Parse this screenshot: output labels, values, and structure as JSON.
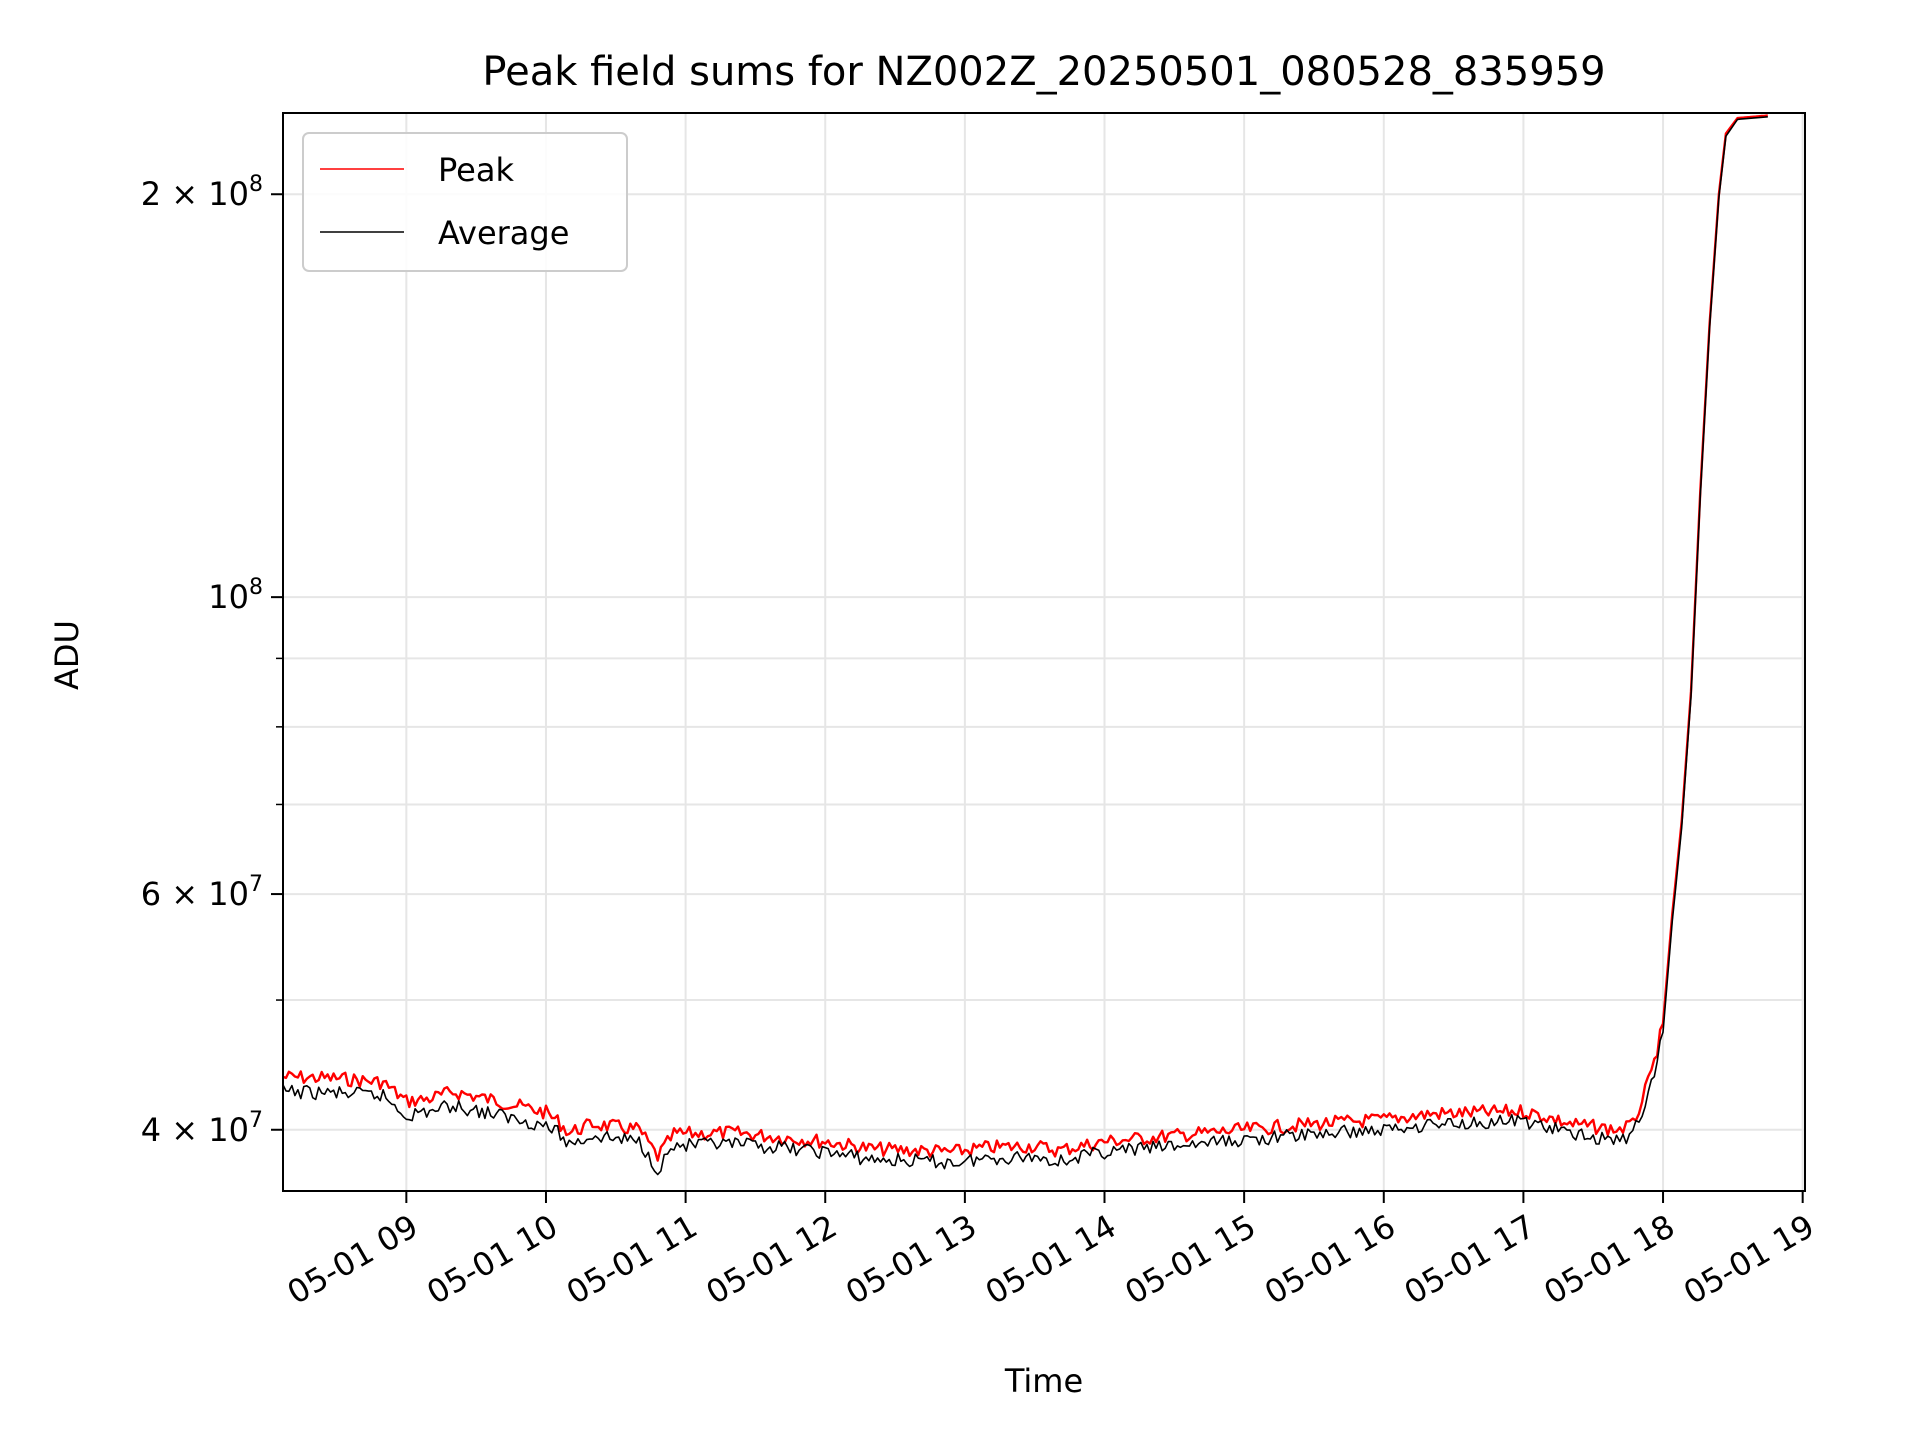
{
  "chart_data": {
    "type": "line",
    "title": "Peak field sums for NZ002Z_20250501_080528_835959",
    "xlabel": "Time",
    "ylabel": "ADU",
    "yscale": "log",
    "xlim": [
      "2025-05-01 08:07",
      "2025-05-01 19:01"
    ],
    "ylim": [
      36000000,
      230000000
    ],
    "grid": true,
    "legend_position": "top-left",
    "x_ticks": [
      {
        "time": "2025-05-01 09:00",
        "label": "05-01 09"
      },
      {
        "time": "2025-05-01 10:00",
        "label": "05-01 10"
      },
      {
        "time": "2025-05-01 11:00",
        "label": "05-01 11"
      },
      {
        "time": "2025-05-01 12:00",
        "label": "05-01 12"
      },
      {
        "time": "2025-05-01 13:00",
        "label": "05-01 13"
      },
      {
        "time": "2025-05-01 14:00",
        "label": "05-01 14"
      },
      {
        "time": "2025-05-01 15:00",
        "label": "05-01 15"
      },
      {
        "time": "2025-05-01 16:00",
        "label": "05-01 16"
      },
      {
        "time": "2025-05-01 17:00",
        "label": "05-01 17"
      },
      {
        "time": "2025-05-01 18:00",
        "label": "05-01 18"
      },
      {
        "time": "2025-05-01 19:00",
        "label": "05-01 19"
      }
    ],
    "y_ticks": [
      {
        "value": 40000000,
        "mantissa": "4",
        "exponent": "7",
        "label": "4 × 10^7"
      },
      {
        "value": 60000000,
        "mantissa": "6",
        "exponent": "7",
        "label": "6 × 10^7"
      },
      {
        "value": 100000000,
        "mantissa": "",
        "exponent": "8",
        "label": "10^8"
      },
      {
        "value": 200000000,
        "mantissa": "2",
        "exponent": "8",
        "label": "2 × 10^8"
      }
    ],
    "y_minor_ticks": [
      50000000,
      70000000,
      80000000,
      90000000
    ],
    "series": [
      {
        "name": "Peak",
        "color": "#ff0000",
        "points": [
          [
            "2025-05-01 08:07",
            43800000
          ],
          [
            "2025-05-01 08:30",
            43700000
          ],
          [
            "2025-05-01 08:50",
            43400000
          ],
          [
            "2025-05-01 09:00",
            42000000
          ],
          [
            "2025-05-01 09:10",
            42200000
          ],
          [
            "2025-05-01 09:20",
            42700000
          ],
          [
            "2025-05-01 09:40",
            42000000
          ],
          [
            "2025-05-01 10:00",
            41200000
          ],
          [
            "2025-05-01 10:05",
            40600000
          ],
          [
            "2025-05-01 10:10",
            39800000
          ],
          [
            "2025-05-01 10:20",
            40400000
          ],
          [
            "2025-05-01 10:40",
            40000000
          ],
          [
            "2025-05-01 10:48",
            38200000
          ],
          [
            "2025-05-01 10:55",
            39700000
          ],
          [
            "2025-05-01 11:20",
            39800000
          ],
          [
            "2025-05-01 11:40",
            39500000
          ],
          [
            "2025-05-01 12:00",
            39200000
          ],
          [
            "2025-05-01 12:20",
            38700000
          ],
          [
            "2025-05-01 12:40",
            38600000
          ],
          [
            "2025-05-01 12:55",
            38500000
          ],
          [
            "2025-05-01 13:10",
            38800000
          ],
          [
            "2025-05-01 13:30",
            38900000
          ],
          [
            "2025-05-01 13:40",
            38600000
          ],
          [
            "2025-05-01 14:00",
            39200000
          ],
          [
            "2025-05-01 14:30",
            39600000
          ],
          [
            "2025-05-01 15:00",
            40000000
          ],
          [
            "2025-05-01 15:30",
            40400000
          ],
          [
            "2025-05-01 16:00",
            40700000
          ],
          [
            "2025-05-01 16:20",
            41100000
          ],
          [
            "2025-05-01 16:40",
            41200000
          ],
          [
            "2025-05-01 17:00",
            41300000
          ],
          [
            "2025-05-01 17:10",
            40900000
          ],
          [
            "2025-05-01 17:20",
            40400000
          ],
          [
            "2025-05-01 17:30",
            40200000
          ],
          [
            "2025-05-01 17:40",
            40000000
          ],
          [
            "2025-05-01 17:47",
            40300000
          ],
          [
            "2025-05-01 17:55",
            44000000
          ],
          [
            "2025-05-01 18:00",
            48000000
          ],
          [
            "2025-05-01 18:04",
            58000000
          ],
          [
            "2025-05-01 18:08",
            68000000
          ],
          [
            "2025-05-01 18:12",
            85000000
          ],
          [
            "2025-05-01 18:16",
            120000000
          ],
          [
            "2025-05-01 18:20",
            160000000
          ],
          [
            "2025-05-01 18:24",
            200000000
          ],
          [
            "2025-05-01 18:27",
            222000000
          ],
          [
            "2025-05-01 18:32",
            228000000
          ],
          [
            "2025-05-01 18:45",
            229000000
          ]
        ]
      },
      {
        "name": "Average",
        "color": "#000000",
        "points": [
          [
            "2025-05-01 08:07",
            42700000
          ],
          [
            "2025-05-01 08:30",
            42600000
          ],
          [
            "2025-05-01 08:50",
            42400000
          ],
          [
            "2025-05-01 09:00",
            41000000
          ],
          [
            "2025-05-01 09:10",
            41300000
          ],
          [
            "2025-05-01 09:20",
            41700000
          ],
          [
            "2025-05-01 09:40",
            41000000
          ],
          [
            "2025-05-01 10:00",
            40300000
          ],
          [
            "2025-05-01 10:05",
            39800000
          ],
          [
            "2025-05-01 10:10",
            39000000
          ],
          [
            "2025-05-01 10:20",
            39600000
          ],
          [
            "2025-05-01 10:40",
            39200000
          ],
          [
            "2025-05-01 10:48",
            37400000
          ],
          [
            "2025-05-01 10:55",
            38900000
          ],
          [
            "2025-05-01 11:20",
            39000000
          ],
          [
            "2025-05-01 11:40",
            38800000
          ],
          [
            "2025-05-01 12:00",
            38500000
          ],
          [
            "2025-05-01 12:20",
            38000000
          ],
          [
            "2025-05-01 12:40",
            37900000
          ],
          [
            "2025-05-01 12:55",
            37800000
          ],
          [
            "2025-05-01 13:10",
            38100000
          ],
          [
            "2025-05-01 13:30",
            38200000
          ],
          [
            "2025-05-01 13:40",
            37900000
          ],
          [
            "2025-05-01 14:00",
            38500000
          ],
          [
            "2025-05-01 14:30",
            38900000
          ],
          [
            "2025-05-01 15:00",
            39300000
          ],
          [
            "2025-05-01 15:30",
            39700000
          ],
          [
            "2025-05-01 16:00",
            40000000
          ],
          [
            "2025-05-01 16:20",
            40400000
          ],
          [
            "2025-05-01 16:40",
            40500000
          ],
          [
            "2025-05-01 17:00",
            40600000
          ],
          [
            "2025-05-01 17:10",
            40200000
          ],
          [
            "2025-05-01 17:20",
            39700000
          ],
          [
            "2025-05-01 17:30",
            39500000
          ],
          [
            "2025-05-01 17:40",
            39300000
          ],
          [
            "2025-05-01 17:47",
            39600000
          ],
          [
            "2025-05-01 17:55",
            43300000
          ],
          [
            "2025-05-01 18:00",
            47300000
          ],
          [
            "2025-05-01 18:04",
            57300000
          ],
          [
            "2025-05-01 18:08",
            67300000
          ],
          [
            "2025-05-01 18:12",
            84300000
          ],
          [
            "2025-05-01 18:16",
            119000000
          ],
          [
            "2025-05-01 18:20",
            159000000
          ],
          [
            "2025-05-01 18:24",
            199000000
          ],
          [
            "2025-05-01 18:27",
            221000000
          ],
          [
            "2025-05-01 18:32",
            227500000
          ],
          [
            "2025-05-01 18:45",
            228500000
          ]
        ]
      }
    ]
  }
}
